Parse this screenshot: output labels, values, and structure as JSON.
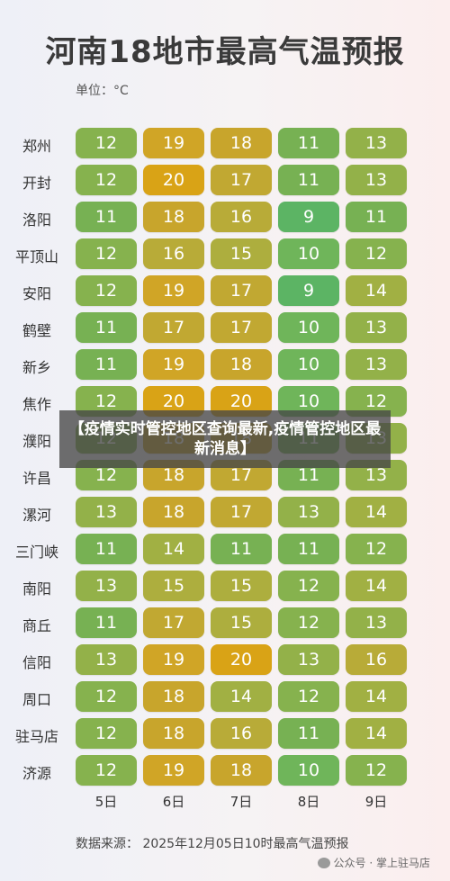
{
  "chart_data": {
    "type": "heatmap",
    "title": "河南18地市最高气温预报",
    "unit_label": "单位：°C",
    "days": [
      "5日",
      "6日",
      "7日",
      "8日",
      "9日"
    ],
    "cities": [
      "郑州",
      "开封",
      "洛阳",
      "平顶山",
      "安阳",
      "鹤壁",
      "新乡",
      "焦作",
      "濮阳",
      "许昌",
      "漯河",
      "三门峡",
      "南阳",
      "商丘",
      "信阳",
      "周口",
      "驻马店",
      "济源"
    ],
    "values": [
      [
        12,
        19,
        18,
        11,
        13
      ],
      [
        12,
        20,
        17,
        11,
        13
      ],
      [
        11,
        18,
        16,
        9,
        11
      ],
      [
        12,
        16,
        15,
        10,
        12
      ],
      [
        12,
        19,
        17,
        9,
        14
      ],
      [
        11,
        17,
        17,
        10,
        13
      ],
      [
        11,
        19,
        18,
        10,
        13
      ],
      [
        12,
        20,
        20,
        10,
        12
      ],
      [
        12,
        18,
        18,
        11,
        13
      ],
      [
        12,
        18,
        17,
        11,
        13
      ],
      [
        13,
        18,
        17,
        13,
        14
      ],
      [
        11,
        14,
        11,
        11,
        12
      ],
      [
        13,
        15,
        15,
        12,
        14
      ],
      [
        11,
        17,
        15,
        12,
        13
      ],
      [
        13,
        19,
        20,
        13,
        16
      ],
      [
        12,
        18,
        14,
        12,
        14
      ],
      [
        12,
        18,
        16,
        11,
        14
      ],
      [
        12,
        19,
        18,
        10,
        12
      ]
    ],
    "source": "数据来源：  2025年12月05日10时最高气温预报"
  },
  "colors": {
    "9": "#5cb464",
    "10": "#6fb55a",
    "11": "#77b153",
    "12": "#86b24e",
    "13": "#93b149",
    "14": "#a1b043",
    "15": "#adae3e",
    "16": "#b8ab38",
    "17": "#c1a832",
    "18": "#c8a52c",
    "19": "#d0a526",
    "20": "#d9a316"
  },
  "overlay_text": "【疫情实时管控地区查询最新,疫情管控地区最新消息】",
  "watermark": "公众号 · 掌上驻马店"
}
